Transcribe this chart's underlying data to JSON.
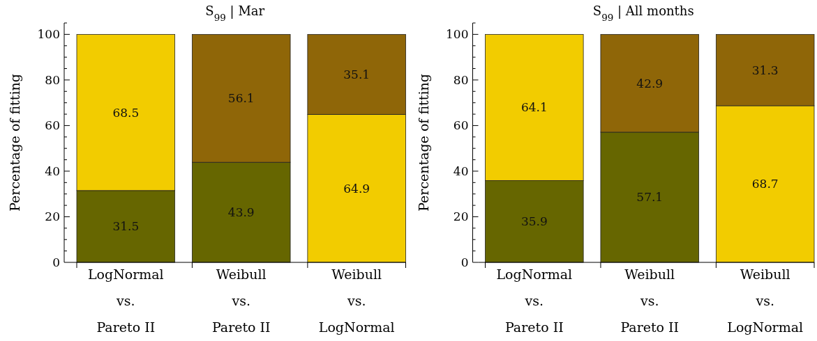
{
  "chart_data": [
    {
      "type": "bar",
      "title": "S$_{99}$ | Mar",
      "ylabel": "Percentage of fitting",
      "categories": [
        "LogNormal\nvs.\nPareto II",
        "Weibull\nvs.\nPareto II",
        "Weibull\nvs.\nLogNormal"
      ],
      "stacked": true,
      "data_labels": true,
      "ylim": [
        0,
        105
      ],
      "yticks": [
        0,
        {
          "value": 5,
          "label": null
        },
        20,
        {
          "value": 10,
          "label": null
        },
        {
          "value": 15,
          "label": null
        },
        {
          "value": 25,
          "label": null
        },
        {
          "value": 30,
          "label": null
        },
        {
          "value": 35,
          "label": null
        },
        40,
        {
          "value": 45,
          "label": null
        },
        {
          "value": 50,
          "label": null
        },
        {
          "value": 55,
          "label": null
        },
        60,
        {
          "value": 65,
          "label": null
        },
        {
          "value": 70,
          "label": null
        },
        {
          "value": 75,
          "label": null
        },
        80,
        {
          "value": 85,
          "label": null
        },
        {
          "value": 90,
          "label": null
        },
        {
          "value": 95,
          "label": null
        },
        100,
        {
          "value": 105,
          "label": null
        }
      ],
      "series": [
        {
          "values": [
            31.5,
            43.9,
            64.9
          ],
          "colors": [
            "#666600",
            "#666600",
            "#f2cc00"
          ]
        },
        {
          "values": [
            68.5,
            56.1,
            35.1
          ],
          "colors": [
            "#f2cc00",
            "#8f6608",
            "#8f6608"
          ]
        }
      ]
    },
    {
      "type": "bar",
      "title": "S$_{99}$ | All months",
      "ylabel": "Percentage of fitting",
      "categories": [
        "LogNormal\nvs.\nPareto II",
        "Weibull\nvs.\nPareto II",
        "Weibull\nvs.\nLogNormal"
      ],
      "stacked": true,
      "data_labels": true,
      "ylim": [
        0,
        105
      ],
      "yticks": [
        0,
        {
          "value": 5,
          "label": null
        },
        20,
        {
          "value": 10,
          "label": null
        },
        {
          "value": 15,
          "label": null
        },
        {
          "value": 25,
          "label": null
        },
        {
          "value": 30,
          "label": null
        },
        {
          "value": 35,
          "label": null
        },
        40,
        {
          "value": 45,
          "label": null
        },
        {
          "value": 50,
          "label": null
        },
        {
          "value": 55,
          "label": null
        },
        60,
        {
          "value": 65,
          "label": null
        },
        {
          "value": 70,
          "label": null
        },
        {
          "value": 75,
          "label": null
        },
        80,
        {
          "value": 85,
          "label": null
        },
        {
          "value": 90,
          "label": null
        },
        {
          "value": 95,
          "label": null
        },
        100,
        {
          "value": 105,
          "label": null
        }
      ],
      "series": [
        {
          "values": [
            35.9,
            57.1,
            68.7
          ],
          "colors": [
            "#666600",
            "#666600",
            "#f2cc00"
          ]
        },
        {
          "values": [
            64.1,
            42.9,
            31.3
          ],
          "colors": [
            "#f2cc00",
            "#8f6608",
            "#8f6608"
          ]
        }
      ]
    }
  ]
}
